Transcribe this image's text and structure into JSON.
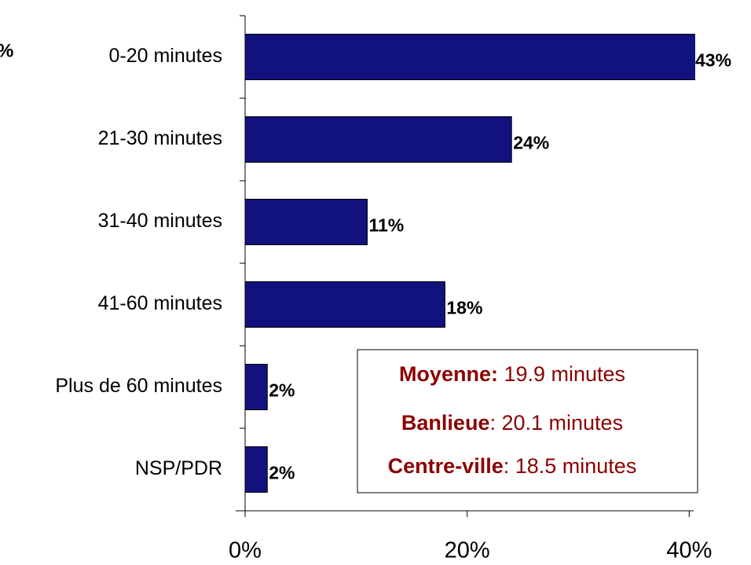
{
  "chart_data": {
    "type": "bar",
    "orientation": "horizontal",
    "corner_note": "%",
    "categories": [
      "0-20 minutes",
      "21-30 minutes",
      "31-40 minutes",
      "41-60 minutes",
      "Plus de 60 minutes",
      "NSP/PDR"
    ],
    "values": [
      43,
      24,
      11,
      18,
      2,
      2
    ],
    "value_labels": [
      "43%",
      "24%",
      "11%",
      "18%",
      "2%",
      "2%"
    ],
    "color": "#12127f",
    "xlim": [
      0,
      40.4
    ],
    "xticks": [
      {
        "value": 0,
        "label": "0%"
      },
      {
        "value": 20,
        "label": "20%"
      },
      {
        "value": 40,
        "label": "40%"
      }
    ],
    "annotations": [
      {
        "bold": "Moyenne:",
        "text": " 19.9 minutes"
      },
      {
        "bold": "Banlieue",
        "text": ": 20.1 minutes"
      },
      {
        "bold": "Centre-ville",
        "text": ": 18.5 minutes"
      }
    ],
    "annotation_color": "#8b0000"
  }
}
